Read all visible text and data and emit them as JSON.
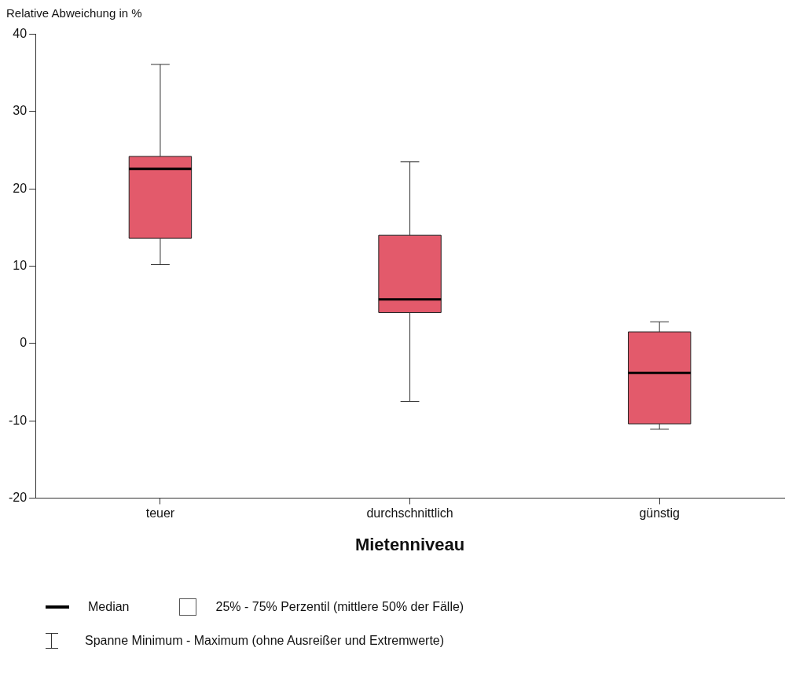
{
  "chart_data": {
    "type": "box",
    "ylabel": "Relative Abweichung in %",
    "xlabel": "Mietenniveau",
    "categories": [
      "teuer",
      "durchschnittlich",
      "günstig"
    ],
    "color": "#e35a6b",
    "boxes": [
      {
        "low": 10.2,
        "q1": 13.6,
        "median": 22.6,
        "q3": 24.2,
        "high": 36.1
      },
      {
        "low": -7.5,
        "q1": 4.0,
        "median": 5.7,
        "q3": 14.0,
        "high": 23.5
      },
      {
        "low": -11.1,
        "q1": -10.4,
        "median": -3.8,
        "q3": 1.5,
        "high": 2.8
      }
    ],
    "ylim": [
      -20,
      40
    ],
    "yticks": [
      -20,
      -10,
      0,
      10,
      20,
      30,
      40
    ],
    "annotations": [
      "Median",
      "25% - 75% Perzentil (mittlere 50% der Fälle)",
      "Spanne Minimum - Maximum (ohne Ausreißer und Extremwerte)"
    ]
  }
}
